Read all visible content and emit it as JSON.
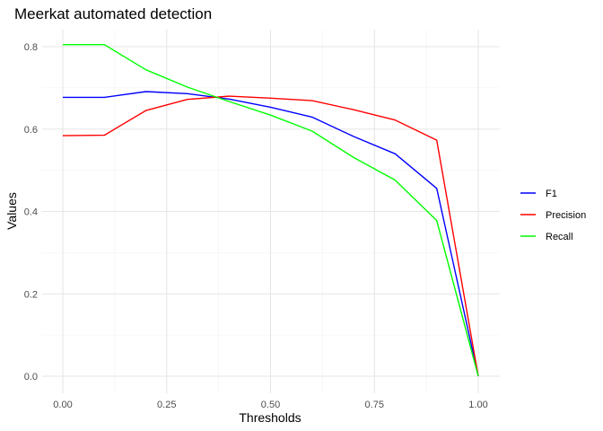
{
  "chart_data": {
    "type": "line",
    "title": "Meerkat automated detection",
    "xlabel": "Thresholds",
    "ylabel": "Values",
    "xlim": [
      0,
      1
    ],
    "ylim": [
      0,
      0.8
    ],
    "x_ticks": [
      0,
      0.25,
      0.5,
      0.75,
      1.0
    ],
    "x_tick_labels": [
      "0.00",
      "0.25",
      "0.50",
      "0.75",
      "1.00"
    ],
    "y_ticks": [
      0,
      0.2,
      0.4,
      0.6,
      0.8
    ],
    "y_tick_labels": [
      "0.0",
      "0.2",
      "0.4",
      "0.6",
      "0.8"
    ],
    "grid": true,
    "legend_position": "right",
    "x": [
      0.0,
      0.1,
      0.2,
      0.3,
      0.4,
      0.5,
      0.6,
      0.7,
      0.8,
      0.9,
      1.0
    ],
    "series": [
      {
        "name": "F1",
        "color": "#0000ff",
        "values": [
          0.677,
          0.677,
          0.691,
          0.686,
          0.673,
          0.653,
          0.629,
          0.582,
          0.54,
          0.456,
          0.0
        ]
      },
      {
        "name": "Precision",
        "color": "#ff0000",
        "values": [
          0.584,
          0.585,
          0.645,
          0.672,
          0.68,
          0.675,
          0.669,
          0.647,
          0.622,
          0.573,
          0.0
        ]
      },
      {
        "name": "Recall",
        "color": "#00ff00",
        "values": [
          0.805,
          0.805,
          0.744,
          0.702,
          0.667,
          0.634,
          0.595,
          0.531,
          0.476,
          0.378,
          0.0
        ]
      }
    ]
  }
}
